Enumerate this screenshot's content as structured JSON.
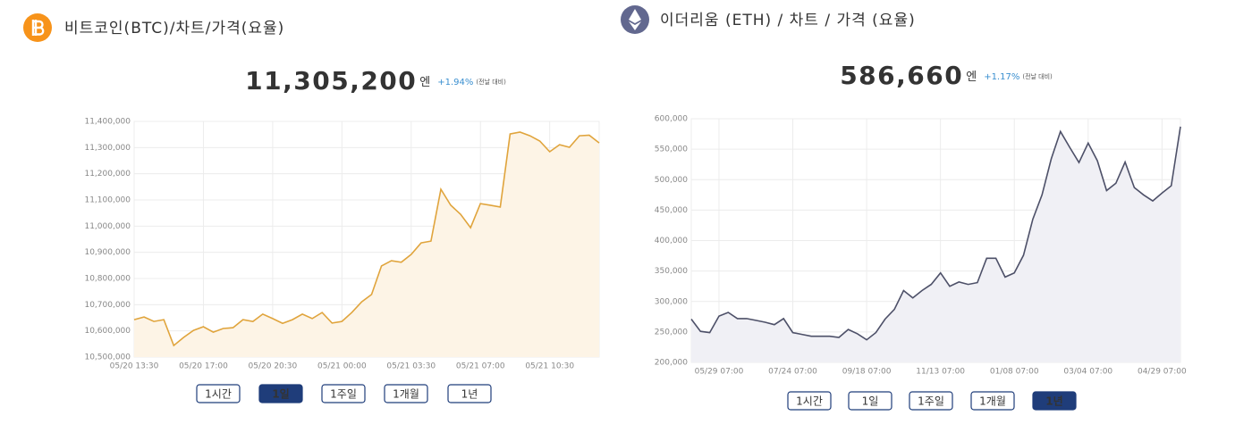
{
  "chart_data": [
    {
      "type": "line",
      "title": "비트코인(BTC)/차트/가격(요율)",
      "price": "11,305,200",
      "unit": "엔",
      "change": "+1.94%",
      "change_note": "(전날 대비)",
      "color": "#e0a43c",
      "fill": "#fdf4e6",
      "categories": [
        "05/20 13:30",
        null,
        null,
        null,
        null,
        null,
        null,
        "05/20 17:00",
        null,
        null,
        null,
        null,
        null,
        null,
        "05/20 20:30",
        null,
        null,
        null,
        null,
        null,
        null,
        "05/21 00:00",
        null,
        null,
        null,
        null,
        null,
        null,
        "05/21 03:30",
        null,
        null,
        null,
        null,
        null,
        null,
        "05/21 07:00",
        null,
        null,
        null,
        null,
        null,
        null,
        "05/21 10:30",
        null,
        null,
        null,
        null,
        null
      ],
      "values": [
        10643000,
        10653000,
        10636000,
        10643000,
        10544000,
        10575000,
        10602000,
        10616000,
        10595000,
        10609000,
        10612000,
        10643000,
        10636000,
        10664000,
        10647000,
        10629000,
        10643000,
        10664000,
        10647000,
        10670000,
        10630000,
        10636000,
        10670000,
        10711000,
        10739000,
        10848000,
        10868000,
        10862000,
        10892000,
        10936000,
        10943000,
        11141000,
        11080000,
        11045000,
        10994000,
        11086000,
        11080000,
        11073000,
        11352000,
        11359000,
        11345000,
        11325000,
        11284000,
        11311000,
        11301000,
        11345000,
        11347000,
        11318000
      ],
      "ylim": [
        10500000,
        11400000
      ],
      "yticks": [
        {
          "value": 10500000,
          "label": "10,500,000"
        },
        {
          "value": 10600000,
          "label": "10,600,000"
        },
        {
          "value": 10700000,
          "label": "10,700,000"
        },
        {
          "value": 10800000,
          "label": "10,800,000"
        },
        {
          "value": 10900000,
          "label": "10,900,000"
        },
        {
          "value": 11000000,
          "label": "11,000,000"
        },
        {
          "value": 11100000,
          "label": "11,100,000"
        },
        {
          "value": 11200000,
          "label": "11,200,000"
        },
        {
          "value": 11300000,
          "label": "11,300,000"
        },
        {
          "value": 11400000,
          "label": "11,400,000"
        }
      ],
      "grid": true,
      "buttons": [
        "1시간",
        "1일",
        "1주일",
        "1개월",
        "1년"
      ],
      "active_button": 1
    },
    {
      "type": "line",
      "title": "이더리움 (ETH) / 차트 / 가격 (요율)",
      "price": "586,660",
      "unit": "엔",
      "change": "+1.17%",
      "change_note": "(전날 대비)",
      "color": "#4d5068",
      "fill": "#f0f0f5",
      "categories": [
        null,
        null,
        null,
        "05/29 07:00",
        null,
        null,
        null,
        null,
        null,
        null,
        null,
        "07/24 07:00",
        null,
        null,
        null,
        null,
        null,
        null,
        null,
        "09/18 07:00",
        null,
        null,
        null,
        null,
        null,
        null,
        null,
        "11/13 07:00",
        null,
        null,
        null,
        null,
        null,
        null,
        null,
        "01/08 07:00",
        null,
        null,
        null,
        null,
        null,
        null,
        null,
        "03/04 07:00",
        null,
        null,
        null,
        null,
        null,
        null,
        null,
        "04/29 07:00",
        null,
        null
      ],
      "values": [
        271000,
        251000,
        249000,
        276000,
        282000,
        272000,
        272000,
        269000,
        266000,
        262000,
        272000,
        249000,
        246000,
        243000,
        243000,
        243000,
        241000,
        254000,
        247000,
        237000,
        249000,
        271000,
        287000,
        318000,
        306000,
        318000,
        328000,
        347000,
        325000,
        332000,
        328000,
        331000,
        371000,
        371000,
        340000,
        347000,
        376000,
        435000,
        475000,
        534000,
        579000,
        553000,
        528000,
        560000,
        531000,
        482000,
        494000,
        529000,
        487000,
        475000,
        465000,
        478000,
        490000,
        587000
      ],
      "ylim": [
        200000,
        600000
      ],
      "yticks": [
        {
          "value": 200000,
          "label": "200,000"
        },
        {
          "value": 250000,
          "label": "250,000"
        },
        {
          "value": 300000,
          "label": "300,000"
        },
        {
          "value": 350000,
          "label": "350,000"
        },
        {
          "value": 400000,
          "label": "400,000"
        },
        {
          "value": 450000,
          "label": "450,000"
        },
        {
          "value": 500000,
          "label": "500,000"
        },
        {
          "value": 550000,
          "label": "550,000"
        },
        {
          "value": 600000,
          "label": "600,000"
        }
      ],
      "grid": true,
      "buttons": [
        "1시간",
        "1일",
        "1주일",
        "1개월",
        "1년"
      ],
      "active_button": 4
    }
  ]
}
